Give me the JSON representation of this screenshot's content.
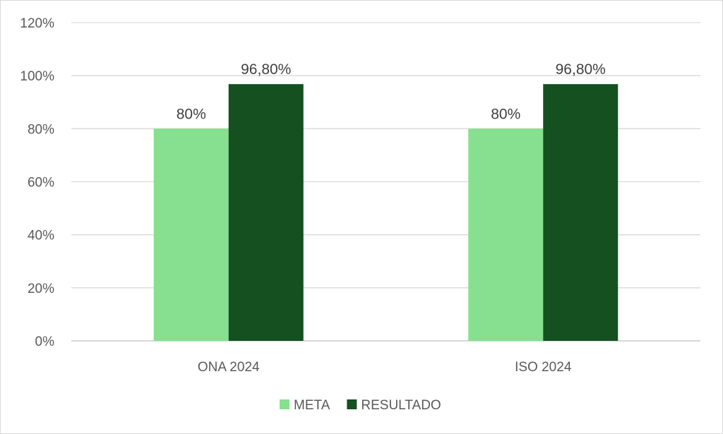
{
  "chart_data": {
    "type": "bar",
    "categories": [
      "ONA 2024",
      "ISO 2024"
    ],
    "series": [
      {
        "name": "META",
        "values": [
          80,
          80
        ],
        "labels": [
          "80%",
          "80%"
        ],
        "color": "#86e08f"
      },
      {
        "name": "RESULTADO",
        "values": [
          96.8,
          96.8
        ],
        "labels": [
          "96,80%",
          "96,80%"
        ],
        "color": "#145020"
      }
    ],
    "ylim": [
      0,
      120
    ],
    "yticks": [
      0,
      20,
      40,
      60,
      80,
      100,
      120
    ],
    "ytick_labels": [
      "0%",
      "20%",
      "40%",
      "60%",
      "80%",
      "100%",
      "120%"
    ],
    "title": "",
    "xlabel": "",
    "ylabel": "",
    "grid": true,
    "legend_position": "bottom"
  }
}
